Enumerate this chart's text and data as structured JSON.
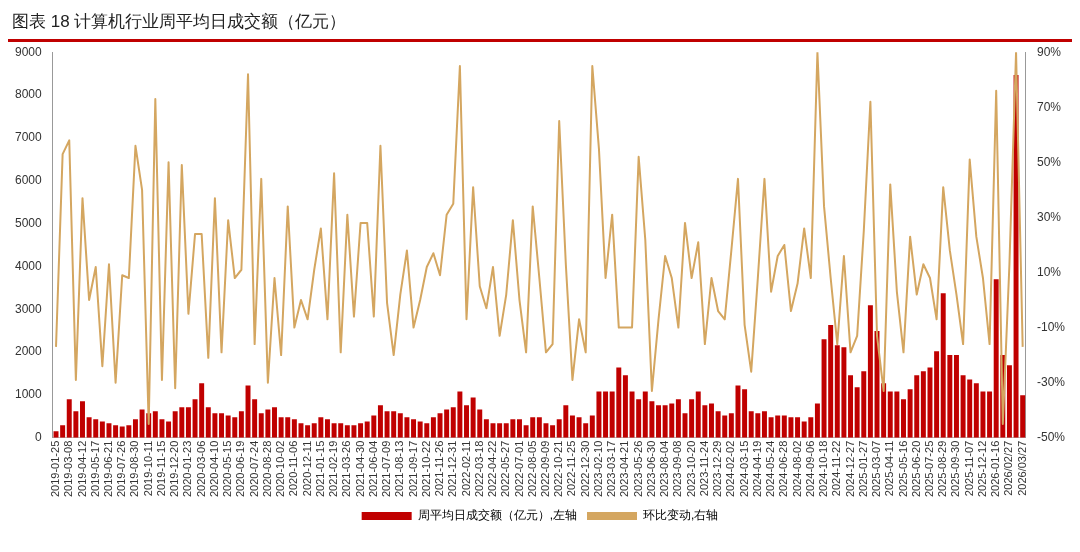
{
  "chart_data": {
    "type": "bar",
    "title": "图表 18 计算机行业周平均日成交额（亿元）",
    "categories": [
      "2019-01-25",
      null,
      "2019-03-08",
      null,
      "2019-04-12",
      null,
      "2019-05-17",
      null,
      "2019-06-21",
      null,
      "2019-07-26",
      null,
      "2019-08-30",
      null,
      "2019-10-11",
      null,
      "2019-11-15",
      null,
      "2019-12-20",
      null,
      "2020-01-23",
      null,
      "2020-03-06",
      null,
      "2020-04-10",
      null,
      "2020-05-15",
      null,
      "2020-06-19",
      null,
      "2020-07-24",
      null,
      "2020-08-28",
      null,
      "2020-10-02",
      null,
      "2020-11-06",
      null,
      "2020-12-11",
      null,
      "2021-01-15",
      null,
      "2021-02-19",
      null,
      "2021-03-26",
      null,
      "2021-04-30",
      null,
      "2021-06-04",
      null,
      "2021-07-09",
      null,
      "2021-08-13",
      null,
      "2021-09-17",
      null,
      "2021-10-22",
      null,
      "2021-11-26",
      null,
      "2021-12-31",
      null,
      "2022-02-11",
      null,
      "2022-03-18",
      null,
      "2022-04-22",
      null,
      "2022-05-27",
      null,
      "2022-07-01",
      null,
      "2022-08-05",
      null,
      "2022-09-09",
      null,
      "2022-10-21",
      null,
      "2022-11-25",
      null,
      "2022-12-30",
      null,
      "2023-02-10",
      null,
      "2023-03-17",
      null,
      "2023-04-21",
      null,
      "2023-05-26",
      null,
      "2023-06-30",
      null,
      "2023-08-04",
      null,
      "2023-09-08",
      null,
      "2023-10-20",
      null,
      "2023-11-24",
      null,
      "2023-12-29",
      null,
      "2024-02-02",
      null,
      "2024-03-15",
      null,
      "2024-04-19",
      null,
      "2024-05-24",
      null,
      "2024-06-28",
      null,
      "2024-08-02",
      null,
      "2024-09-06",
      null,
      "2024-10-18",
      null,
      "2024-11-22",
      null,
      "2024-12-27",
      null,
      "2025-01-27",
      null,
      "2025-03-07",
      null,
      "2025-04-11",
      null,
      "2025-05-16",
      null,
      "2025-06-20",
      null,
      "2025-07-25",
      null,
      "2025-08-29",
      null,
      "2025-09-30",
      null,
      "2025-11-07",
      null,
      "2025-12-12",
      null,
      "2026-01-16",
      null,
      "2026/02/27",
      null,
      "2026/03/27"
    ],
    "series": [
      {
        "name": "周平均日成交额（亿元）,左轴",
        "color": "#c00000",
        "values": [
          150,
          290,
          900,
          620,
          850,
          480,
          430,
          380,
          340,
          290,
          260,
          290,
          430,
          660,
          570,
          620,
          430,
          380,
          620,
          710,
          710,
          900,
          1270,
          710,
          570,
          570,
          520,
          480,
          620,
          1220,
          900,
          570,
          660,
          710,
          480,
          480,
          430,
          340,
          290,
          340,
          480,
          430,
          340,
          340,
          290,
          290,
          340,
          380,
          520,
          760,
          620,
          620,
          570,
          480,
          430,
          380,
          340,
          480,
          570,
          660,
          710,
          1080,
          760,
          940,
          660,
          430,
          340,
          340,
          340,
          430,
          430,
          290,
          480,
          480,
          340,
          290,
          430,
          760,
          520,
          480,
          340,
          520,
          1080,
          1080,
          1080,
          1640,
          1460,
          1080,
          900,
          1080,
          850,
          760,
          760,
          800,
          900,
          570,
          900,
          1080,
          760,
          800,
          620,
          520,
          570,
          1220,
          1130,
          620,
          570,
          620,
          480,
          520,
          520,
          480,
          480,
          380,
          480,
          800,
          2300,
          2630,
          2160,
          2110,
          1460,
          1180,
          1550,
          3090,
          2490,
          1270,
          1080,
          1080,
          900,
          1130,
          1460,
          1550,
          1640,
          2020,
          3370,
          1930,
          1930,
          1460,
          1360,
          1270,
          1080,
          1080,
          3700,
          1930,
          1690,
          8470,
          990
        ]
      },
      {
        "type": "line",
        "axis": "y2",
        "name": "环比变动,右轴",
        "color": "#d4a660",
        "values": [
          -17,
          53,
          58,
          -29,
          37,
          0,
          12,
          -24,
          13,
          -30,
          9,
          8,
          56,
          40,
          -45,
          73,
          -29,
          50,
          -32,
          49,
          -5,
          24,
          24,
          -21,
          37,
          -19,
          29,
          8,
          11,
          82,
          -16,
          44,
          -30,
          8,
          -20,
          34,
          -10,
          0,
          -7,
          11,
          26,
          -7,
          46,
          -19,
          31,
          -6,
          28,
          28,
          -6,
          56,
          -1,
          -20,
          2,
          18,
          -10,
          0,
          12,
          17,
          9,
          31,
          35,
          85,
          -7,
          41,
          5,
          -3,
          12,
          -13,
          2,
          29,
          0,
          -19,
          34,
          8,
          -19,
          -16,
          65,
          13,
          -29,
          -7,
          -19,
          85,
          55,
          8,
          31,
          -10,
          -10,
          -10,
          52,
          22,
          -33,
          -7,
          16,
          8,
          -10,
          28,
          8,
          21,
          -16,
          8,
          -4,
          -7,
          18,
          44,
          -9,
          -26,
          8,
          44,
          3,
          16,
          20,
          -4,
          6,
          26,
          8,
          90,
          34,
          8,
          -16,
          16,
          -19,
          -13,
          25,
          72,
          -13,
          -33,
          42,
          3,
          -19,
          23,
          2,
          13,
          8,
          -7,
          41,
          18,
          2,
          -16,
          51,
          23,
          8,
          -16,
          76,
          -45,
          13,
          90,
          -17
        ]
      }
    ],
    "ylim": [
      0,
      9000
    ],
    "yticks": [
      0,
      1000,
      2000,
      3000,
      4000,
      5000,
      6000,
      7000,
      8000,
      9000
    ],
    "y2lim": [
      -50,
      90
    ],
    "y2ticks": [
      {
        "value": -50,
        "label": "-50%"
      },
      {
        "value": -30,
        "label": "-30%"
      },
      {
        "value": -10,
        "label": "-10%"
      },
      {
        "value": 10,
        "label": "10%"
      },
      {
        "value": 30,
        "label": "30%"
      },
      {
        "value": 50,
        "label": "50%"
      },
      {
        "value": 70,
        "label": "70%"
      },
      {
        "value": 90,
        "label": "90%"
      }
    ],
    "grid": false,
    "legend": "bottom",
    "marker": "none",
    "line_style": "solid"
  }
}
